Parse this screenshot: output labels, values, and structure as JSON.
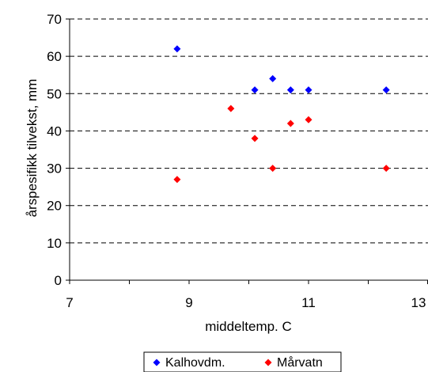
{
  "chart_data": {
    "type": "scatter",
    "title": "",
    "xlabel": "middeltemp. C",
    "ylabel": "årspesifikk tilvekst, mm",
    "xlim": [
      7,
      13
    ],
    "ylim": [
      0,
      70
    ],
    "x_ticks": [
      "7",
      "9",
      "11",
      "13"
    ],
    "y_ticks": [
      "0",
      "10",
      "20",
      "30",
      "40",
      "50",
      "60",
      "70"
    ],
    "grid": "horizontal-dashed",
    "legend_position": "bottom",
    "series": [
      {
        "name": "Kalhovdm.",
        "color": "#0000ff",
        "marker": "diamond",
        "points": [
          {
            "x": 8.8,
            "y": 62
          },
          {
            "x": 10.1,
            "y": 51
          },
          {
            "x": 10.4,
            "y": 54
          },
          {
            "x": 10.7,
            "y": 51
          },
          {
            "x": 11.0,
            "y": 51
          },
          {
            "x": 12.3,
            "y": 51
          }
        ]
      },
      {
        "name": "Mårvatn",
        "color": "#ff0000",
        "marker": "diamond",
        "points": [
          {
            "x": 8.8,
            "y": 27
          },
          {
            "x": 9.7,
            "y": 46
          },
          {
            "x": 10.1,
            "y": 38
          },
          {
            "x": 10.4,
            "y": 30
          },
          {
            "x": 10.7,
            "y": 42
          },
          {
            "x": 11.0,
            "y": 43
          },
          {
            "x": 12.3,
            "y": 30
          }
        ]
      }
    ]
  }
}
